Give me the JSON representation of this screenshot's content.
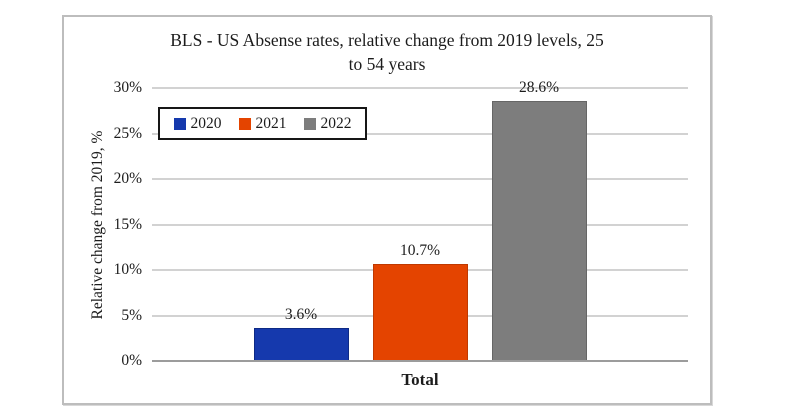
{
  "chart": {
    "title_line1": "BLS - US Absense rates, relative change from 2019 levels, 25",
    "title_line2": "to 54 years"
  },
  "chart_data": {
    "type": "bar",
    "title": "BLS - US Absense rates, relative change from 2019 levels, 25 to 54 years",
    "categories": [
      "Total"
    ],
    "series": [
      {
        "name": "2020",
        "values": [
          3.6
        ],
        "color": "#1539ad",
        "border_color": "#0e2a85"
      },
      {
        "name": "2021",
        "values": [
          10.7
        ],
        "color": "#e44400",
        "border_color": "#bf3900"
      },
      {
        "name": "2022",
        "values": [
          28.6
        ],
        "color": "#7d7d7d",
        "border_color": "#666666"
      }
    ],
    "value_labels": [
      "3.6%",
      "10.7%",
      "28.6%"
    ],
    "xlabel": "Total",
    "ylabel": "Relative change from 2019, %",
    "ylim": [
      0,
      30
    ],
    "ytick_step": 5,
    "ytick_labels": [
      "0%",
      "5%",
      "10%",
      "15%",
      "20%",
      "25%",
      "30%"
    ],
    "grid": true,
    "legend_position": "upper-left-inside",
    "grid_color": "#d2d2d2",
    "baseline_color": "#9c9c9c"
  }
}
